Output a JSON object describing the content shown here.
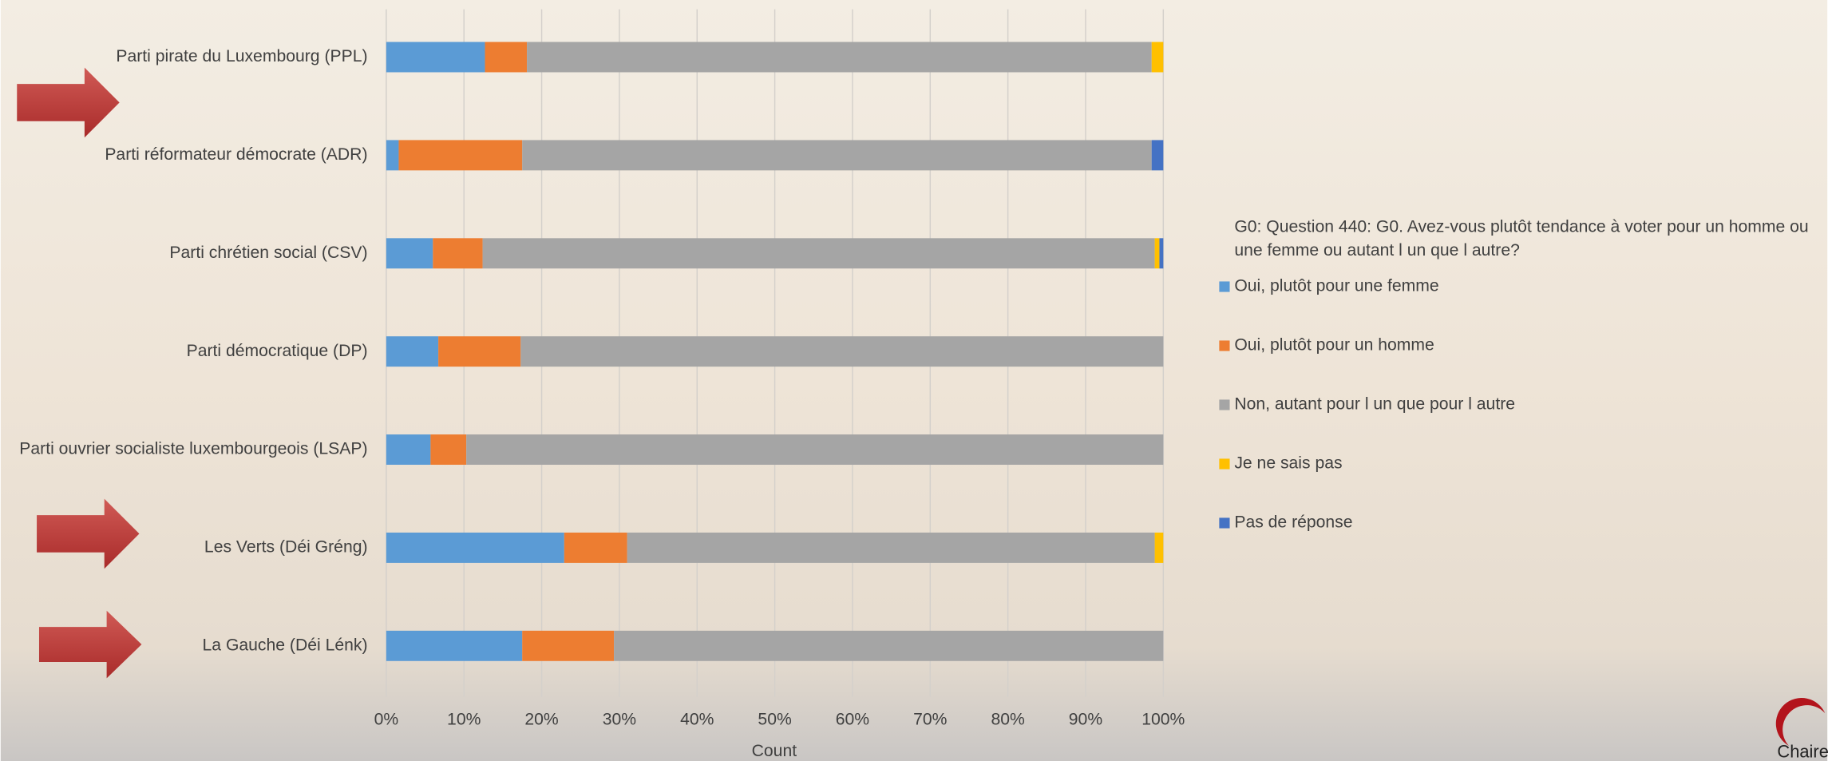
{
  "chart_data": {
    "type": "stacked_barh",
    "categories": [
      "Parti pirate du Luxembourg (PPL)",
      "Parti réformateur démocrate (ADR)",
      "Parti chrétien social (CSV)",
      "Parti démocratique (DP)",
      "Parti ouvrier socialiste luxembourgeois (LSAP)",
      "Les Verts (Déi Gréng)",
      "La Gauche (Déi Lénk)"
    ],
    "series": [
      {
        "name": "Oui, plutôt pour une femme",
        "color": "#5b9bd5",
        "values": [
          12.7,
          1.6,
          6.0,
          6.7,
          5.7,
          22.9,
          17.5
        ]
      },
      {
        "name": "Oui, plutôt pour un homme",
        "color": "#ed7d31",
        "values": [
          5.4,
          15.9,
          6.4,
          10.6,
          4.6,
          8.1,
          11.8
        ]
      },
      {
        "name": "Non, autant pour l un que pour l autre",
        "color": "#a5a5a5",
        "values": [
          80.4,
          81.0,
          86.5,
          82.7,
          89.7,
          67.9,
          70.7
        ]
      },
      {
        "name": "Je ne sais pas",
        "color": "#ffc000",
        "values": [
          1.5,
          0,
          0.6,
          0,
          0,
          1.1,
          0
        ]
      },
      {
        "name": "Pas de réponse",
        "color": "#4472c4",
        "values": [
          0,
          1.5,
          0.5,
          0,
          0,
          0,
          0
        ]
      }
    ],
    "xlim": [
      0,
      100
    ],
    "xticks": [
      {
        "value": 0,
        "label": "0%"
      },
      {
        "value": 10,
        "label": "10%"
      },
      {
        "value": 20,
        "label": "20%"
      },
      {
        "value": 30,
        "label": "30%"
      },
      {
        "value": 40,
        "label": "40%"
      },
      {
        "value": 50,
        "label": "50%"
      },
      {
        "value": 60,
        "label": "60%"
      },
      {
        "value": 70,
        "label": "70%"
      },
      {
        "value": 80,
        "label": "80%"
      },
      {
        "value": 90,
        "label": "90%"
      },
      {
        "value": 100,
        "label": "100%"
      }
    ],
    "xlabel": "Count",
    "legend_title": "G0: Question 440: G0. Avez-vous plutôt tendance à voter pour un homme ou une femme ou autant l un que l autre?",
    "grid": true
  },
  "logo_text": "Chaire de r"
}
